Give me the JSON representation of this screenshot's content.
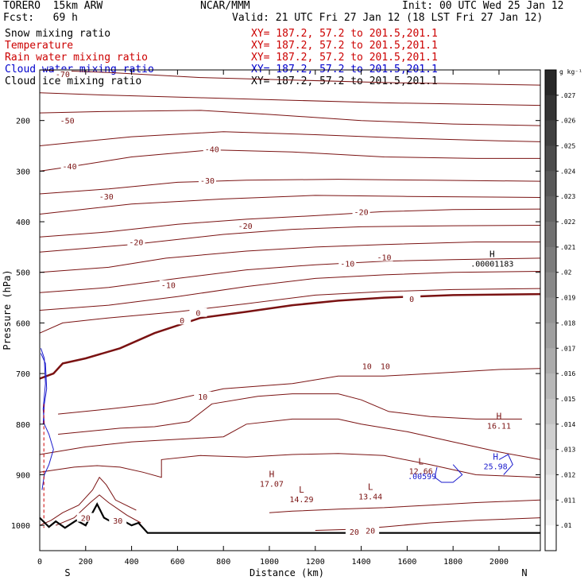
{
  "header": {
    "model": "TORERO  15km ARW",
    "center": "NCAR/MMM",
    "init": "Init: 00 UTC Wed 25 Jan 12",
    "fcst": "Fcst:   69 h",
    "valid": "Valid: 21 UTC Fri 27 Jan 12 (18 LST Fri 27 Jan 12)",
    "fields": [
      {
        "name": "Snow mixing ratio",
        "xy": "XY= 187.2, 57.2 to 201.5,201.1",
        "color": "#000000",
        "xycolor": "#cc0000"
      },
      {
        "name": "Temperature",
        "xy": "XY= 187.2, 57.2 to 201.5,201.1",
        "color": "#cc0000",
        "xycolor": "#cc0000"
      },
      {
        "name": "Rain water mixing ratio",
        "xy": "XY= 187.2, 57.2 to 201.5,201.1",
        "color": "#cc0000",
        "xycolor": "#cc0000"
      },
      {
        "name": "Cloud water mixing ratio",
        "xy": "XY= 187.2, 57.2 to 201.5,201.1",
        "color": "#0000cc",
        "xycolor": "#0000cc"
      },
      {
        "name": "Cloud ice mixing ratio",
        "xy": "XY= 187.2, 57.2 to 201.5,201.1",
        "color": "#000000",
        "xycolor": "#000000"
      }
    ]
  },
  "chart_data": {
    "type": "contour cross-section",
    "xlabel": "Distance (km)",
    "ylabel": "Pressure (hPa)",
    "x_ticks": [
      0,
      200,
      400,
      600,
      800,
      1000,
      1200,
      1400,
      1600,
      1800,
      2000
    ],
    "y_ticks": [
      200,
      300,
      400,
      500,
      600,
      700,
      800,
      900,
      1000
    ],
    "xlim": [
      0,
      2180
    ],
    "ylim": [
      1050,
      100
    ],
    "left_end": "S",
    "right_end": "N",
    "colorbar": {
      "unit": "g kg⁻¹",
      "ticks": [
        ".027",
        ".026",
        ".025",
        ".024",
        ".023",
        ".022",
        ".021",
        ".02",
        ".019",
        ".018",
        ".017",
        ".016",
        ".015",
        ".014",
        ".013",
        ".012",
        ".011",
        ".01"
      ]
    },
    "temperature_contours_C": [
      {
        "value": -70,
        "label_x": 100,
        "label_p": 108
      },
      {
        "value": -50,
        "label_x": 120,
        "label_p": 200
      },
      {
        "value": -40,
        "label_x": 130,
        "label_p": 290
      },
      {
        "value": -40,
        "label_x": 750,
        "label_p": 256
      },
      {
        "value": -30,
        "label_x": 290,
        "label_p": 350
      },
      {
        "value": -30,
        "label_x": 730,
        "label_p": 318
      },
      {
        "value": -20,
        "label_x": 420,
        "label_p": 440
      },
      {
        "value": -20,
        "label_x": 895,
        "label_p": 408
      },
      {
        "value": -20,
        "label_x": 1400,
        "label_p": 380
      },
      {
        "value": -10,
        "label_x": 560,
        "label_p": 525
      },
      {
        "value": -10,
        "label_x": 1340,
        "label_p": 482
      },
      {
        "value": -10,
        "label_x": 1500,
        "label_p": 470
      },
      {
        "value": 0,
        "label_x": 620,
        "label_p": 595
      },
      {
        "value": 0,
        "label_x": 690,
        "label_p": 580
      },
      {
        "value": 0,
        "label_x": 1620,
        "label_p": 552
      },
      {
        "value": 10,
        "label_x": 1425,
        "label_p": 685
      },
      {
        "value": 10,
        "label_x": 1505,
        "label_p": 685
      },
      {
        "value": 10,
        "label_x": 710,
        "label_p": 745
      },
      {
        "value": 20,
        "label_x": 200,
        "label_p": 985
      },
      {
        "value": 30,
        "label_x": 340,
        "label_p": 990
      },
      {
        "value": 20,
        "label_x": 1370,
        "label_p": 1012
      },
      {
        "value": 20,
        "label_x": 1440,
        "label_p": 1010
      }
    ],
    "highs_lows": [
      {
        "kind": "H",
        "value": ".00001183",
        "x": 1970,
        "p": 470
      },
      {
        "kind": "H",
        "value": "16.11",
        "x": 2000,
        "p": 790
      },
      {
        "kind": "H",
        "value": "17.07",
        "x": 1010,
        "p": 905
      },
      {
        "kind": "L",
        "value": "14.29",
        "x": 1140,
        "p": 935
      },
      {
        "kind": "L",
        "value": "13.44",
        "x": 1440,
        "p": 930
      },
      {
        "kind": "L",
        "value": "12.66",
        "x": 1660,
        "p": 880
      },
      {
        "kind": "H",
        "value": "25.98",
        "x": 1985,
        "p": 870
      }
    ],
    "overlapping_labels": [
      "12.66",
      ".00599",
      "25.98"
    ]
  }
}
